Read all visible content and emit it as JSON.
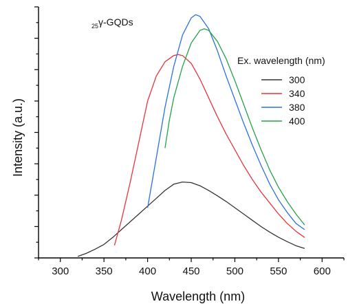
{
  "chart_data": {
    "type": "line",
    "annotation": {
      "prefix": "25",
      "text": "γ-GQDs"
    },
    "xlabel": "Wavelength (nm)",
    "ylabel": "Intensity (a.u.)",
    "xlim": [
      275,
      625
    ],
    "ylim": [
      0,
      80
    ],
    "x_ticks": [
      300,
      350,
      400,
      450,
      500,
      550,
      600
    ],
    "y_tick_labels_shown": false,
    "grid": false,
    "legend": {
      "title": "Ex. wavelength (nm)",
      "placement": "top-right",
      "entries": [
        "300",
        "340",
        "380",
        "400"
      ]
    },
    "series": [
      {
        "name": "300",
        "color": "#333333",
        "x": [
          320,
          330,
          340,
          350,
          360,
          370,
          380,
          390,
          400,
          410,
          420,
          430,
          440,
          450,
          460,
          470,
          480,
          490,
          500,
          510,
          520,
          530,
          540,
          550,
          560,
          570,
          580
        ],
        "y": [
          0.5,
          1.5,
          2.8,
          4.3,
          6.5,
          9,
          11.5,
          14,
          16.5,
          19,
          21.5,
          23.5,
          24.2,
          24,
          23,
          21.5,
          19.8,
          18,
          16,
          14,
          12,
          10,
          8.2,
          6.6,
          5.2,
          3.9,
          3
        ]
      },
      {
        "name": "340",
        "color": "#e8333a",
        "x": [
          362,
          370,
          380,
          390,
          400,
          410,
          420,
          430,
          435,
          440,
          450,
          460,
          470,
          480,
          490,
          500,
          510,
          520,
          530,
          540,
          550,
          560,
          570,
          580
        ],
        "y": [
          4,
          12,
          24,
          37,
          50,
          58,
          62.5,
          64.5,
          64.8,
          64.5,
          62,
          57,
          51,
          45,
          39.5,
          34.5,
          29.5,
          25,
          21,
          17.5,
          14,
          11,
          8.5,
          6.5
        ]
      },
      {
        "name": "380",
        "color": "#2a6fe0",
        "x": [
          400,
          410,
          420,
          430,
          440,
          450,
          455,
          460,
          470,
          480,
          490,
          500,
          510,
          520,
          530,
          540,
          550,
          560,
          570,
          580
        ],
        "y": [
          16,
          32,
          48,
          61,
          71,
          76.5,
          77.5,
          77,
          73,
          66,
          58,
          50.5,
          43,
          36,
          29.5,
          23.5,
          18.5,
          14.5,
          11,
          9
        ]
      },
      {
        "name": "400",
        "color": "#22a245",
        "x": [
          420,
          425,
          430,
          440,
          450,
          460,
          465,
          470,
          480,
          490,
          500,
          510,
          520,
          530,
          540,
          550,
          560,
          570,
          580
        ],
        "y": [
          35,
          44,
          51,
          61,
          68.5,
          72.5,
          73,
          72.5,
          69,
          63.5,
          56.5,
          49,
          41.5,
          34.5,
          28,
          22.5,
          18,
          14,
          10.5
        ]
      }
    ]
  }
}
